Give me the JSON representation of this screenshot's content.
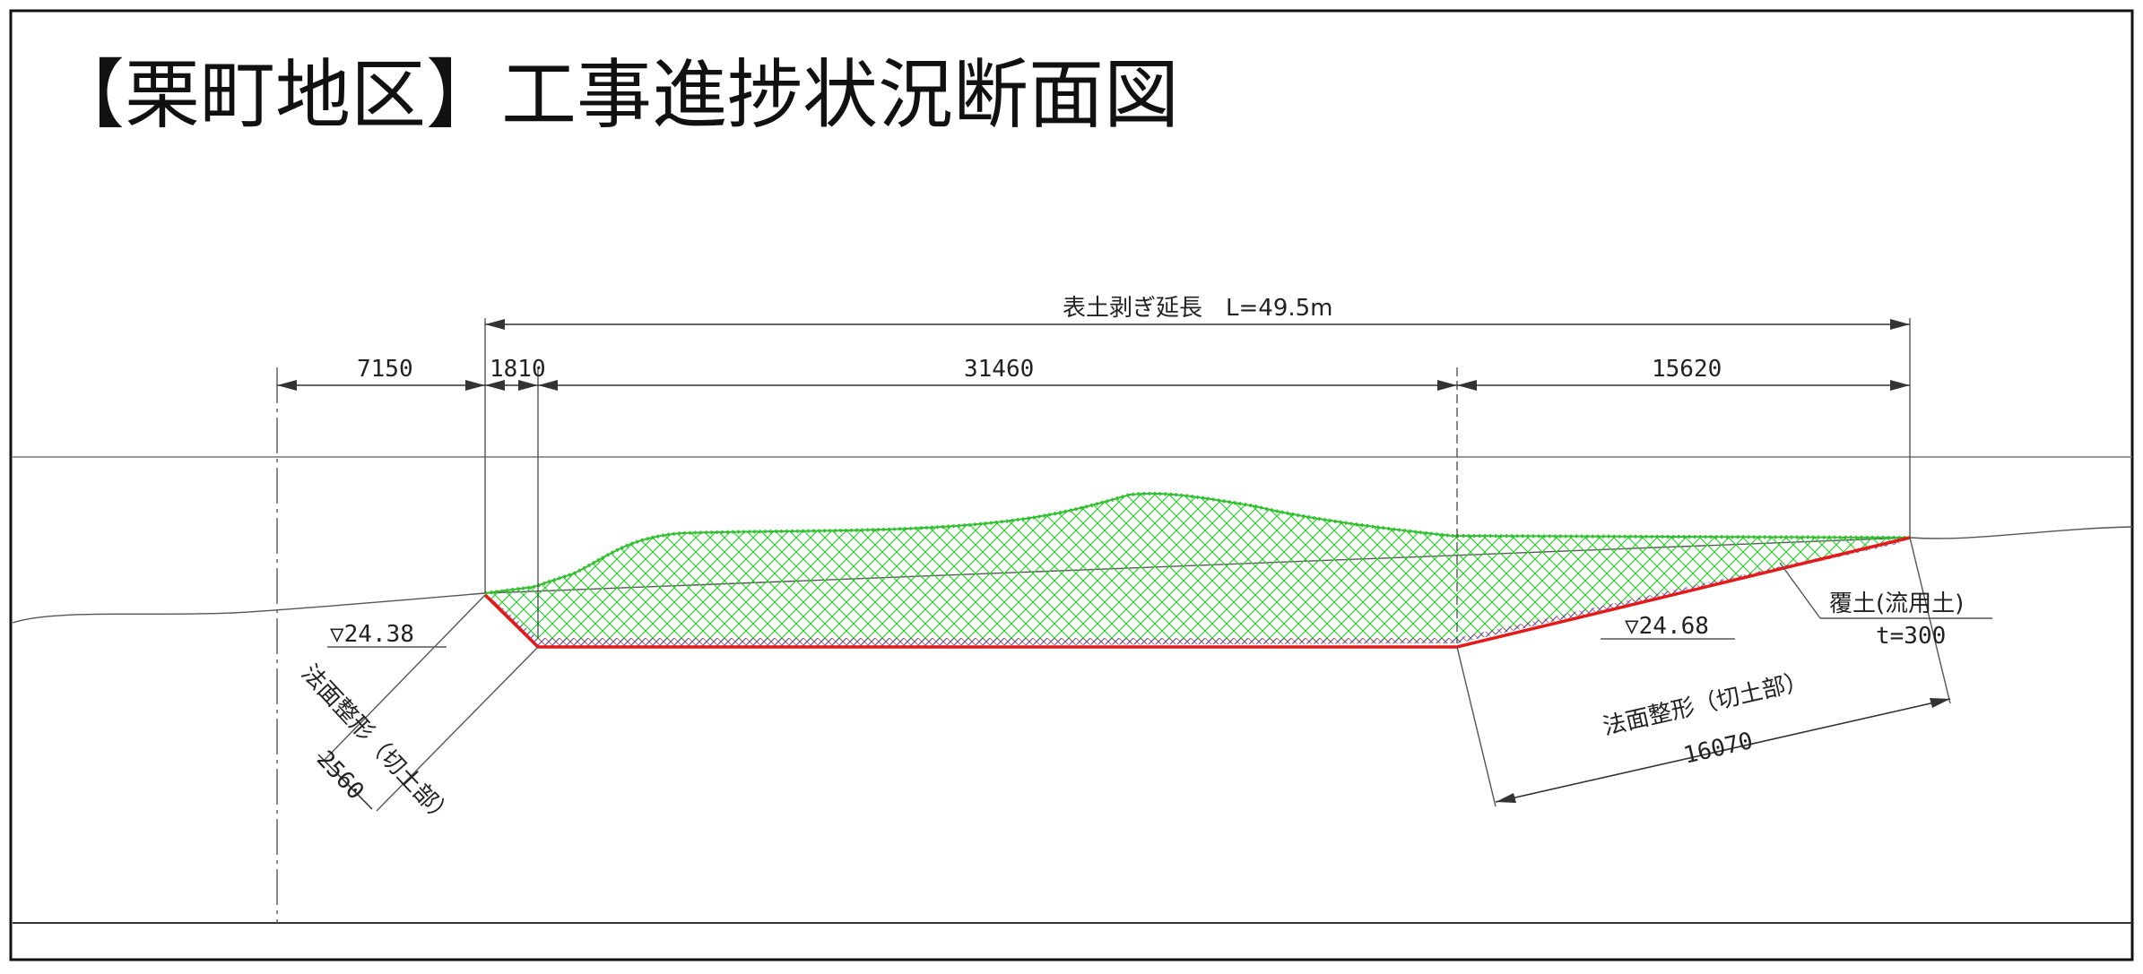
{
  "title": "【栗町地区】工事進捗状況断面図",
  "overall_dimension": "表土剥ぎ延長　L=49.5m",
  "dimensions": {
    "d1": "7150",
    "d2": "1810",
    "d3": "31460",
    "d4": "15620"
  },
  "elevations": {
    "left": "▽24.38",
    "right": "▽24.68"
  },
  "left_slope": {
    "label": "法面整形（切土部）",
    "length": "2560"
  },
  "right_slope": {
    "label": "法面整形（切土部）",
    "length": "16070"
  },
  "cover_soil": {
    "label": "覆土(流用土)",
    "thickness": "t=300"
  },
  "colors": {
    "embankment_fill": "#3ccf3c",
    "cut_line": "#e41a1a",
    "hatch_blue": "#4a5fbf",
    "frame": "#111111"
  }
}
